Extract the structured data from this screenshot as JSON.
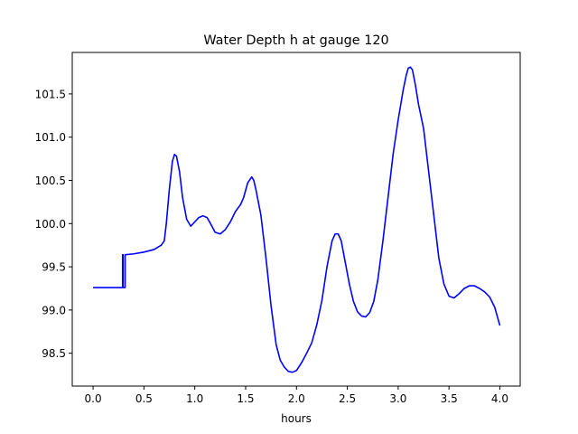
{
  "chart_data": {
    "type": "line",
    "title": "Water Depth h at gauge 120",
    "xlabel": "hours",
    "ylabel": "",
    "xlim": [
      -0.205,
      4.2
    ],
    "ylim": [
      98.12,
      101.98
    ],
    "grid": false,
    "x_ticks": [
      0.0,
      0.5,
      1.0,
      1.5,
      2.0,
      2.5,
      3.0,
      3.5,
      4.0
    ],
    "x_tick_labels": [
      "0.0",
      "0.5",
      "1.0",
      "1.5",
      "2.0",
      "2.5",
      "3.0",
      "3.5",
      "4.0"
    ],
    "y_ticks": [
      98.5,
      99.0,
      99.5,
      100.0,
      100.5,
      101.0,
      101.5
    ],
    "y_tick_labels": [
      "98.5",
      "99.0",
      "99.5",
      "100.0",
      "100.5",
      "101.0",
      "101.5"
    ],
    "series": [
      {
        "color": "#0000ff",
        "x": [
          0.0,
          0.1,
          0.2,
          0.29,
          0.29,
          0.295,
          0.295,
          0.315,
          0.315,
          0.32,
          0.32,
          0.4,
          0.5,
          0.6,
          0.67,
          0.7,
          0.72,
          0.75,
          0.78,
          0.8,
          0.82,
          0.85,
          0.88,
          0.92,
          0.96,
          1.0,
          1.04,
          1.08,
          1.12,
          1.15,
          1.2,
          1.25,
          1.3,
          1.35,
          1.4,
          1.45,
          1.48,
          1.52,
          1.56,
          1.58,
          1.6,
          1.65,
          1.7,
          1.75,
          1.8,
          1.84,
          1.88,
          1.92,
          1.96,
          2.0,
          2.05,
          2.1,
          2.15,
          2.2,
          2.25,
          2.3,
          2.35,
          2.38,
          2.41,
          2.44,
          2.48,
          2.52,
          2.56,
          2.6,
          2.64,
          2.68,
          2.72,
          2.76,
          2.8,
          2.85,
          2.9,
          2.95,
          3.0,
          3.05,
          3.08,
          3.1,
          3.12,
          3.14,
          3.17,
          3.2,
          3.25,
          3.3,
          3.35,
          3.4,
          3.45,
          3.5,
          3.55,
          3.6,
          3.65,
          3.7,
          3.75,
          3.8,
          3.85,
          3.9,
          3.95,
          4.0
        ],
        "y": [
          99.26,
          99.26,
          99.26,
          99.26,
          99.64,
          99.64,
          99.26,
          99.26,
          99.64,
          99.64,
          99.64,
          99.65,
          99.67,
          99.7,
          99.75,
          99.8,
          100.0,
          100.4,
          100.72,
          100.8,
          100.78,
          100.6,
          100.3,
          100.05,
          99.97,
          100.02,
          100.07,
          100.09,
          100.07,
          100.01,
          99.9,
          99.88,
          99.93,
          100.02,
          100.14,
          100.22,
          100.3,
          100.47,
          100.54,
          100.5,
          100.4,
          100.1,
          99.6,
          99.05,
          98.6,
          98.42,
          98.34,
          98.29,
          98.28,
          98.3,
          98.39,
          98.5,
          98.62,
          98.83,
          99.11,
          99.5,
          99.8,
          99.88,
          99.88,
          99.8,
          99.55,
          99.3,
          99.1,
          98.98,
          98.93,
          98.92,
          98.97,
          99.1,
          99.35,
          99.8,
          100.3,
          100.8,
          101.2,
          101.55,
          101.72,
          101.8,
          101.81,
          101.78,
          101.6,
          101.38,
          101.1,
          100.6,
          100.1,
          99.6,
          99.3,
          99.16,
          99.14,
          99.19,
          99.25,
          99.28,
          99.28,
          99.25,
          99.21,
          99.15,
          99.03,
          98.82
        ]
      }
    ]
  }
}
